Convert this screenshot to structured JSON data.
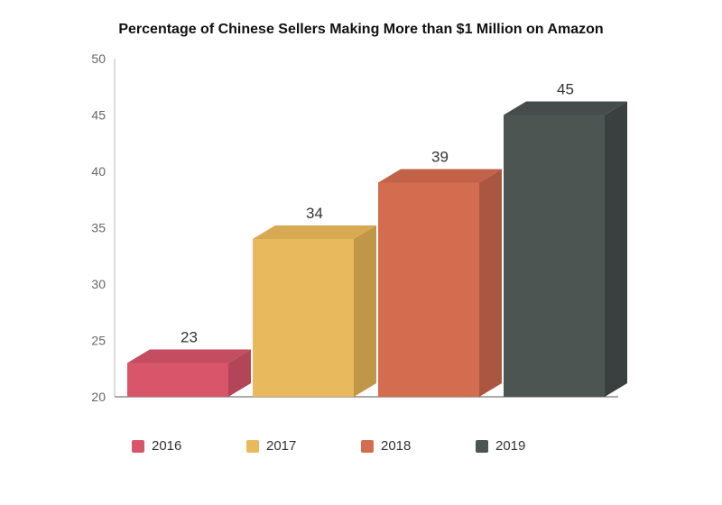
{
  "chart_data": {
    "type": "bar",
    "title": "Percentage of Chinese Sellers Making More than $1 Million on Amazon",
    "categories": [
      "2016",
      "2017",
      "2018",
      "2019"
    ],
    "values": [
      23,
      34,
      39,
      45
    ],
    "data_labels": [
      "23",
      "34",
      "39",
      "45"
    ],
    "xlabel": "",
    "ylabel": "",
    "ylim": [
      20,
      50
    ],
    "yticks": [
      20,
      25,
      30,
      35,
      40,
      45,
      50
    ],
    "ytick_labels": [
      "20",
      "25",
      "30",
      "35",
      "40",
      "45",
      "50"
    ],
    "grid": false,
    "legend": "bottom",
    "colors": [
      "#d9566a",
      "#e9b95e",
      "#d46c50",
      "#4d5553"
    ],
    "side_colors": [
      "#b34558",
      "#c09648",
      "#ab5640",
      "#3a403f"
    ],
    "top_colors": [
      "#c44d60",
      "#d7a953",
      "#c16249",
      "#454c4b"
    ]
  }
}
